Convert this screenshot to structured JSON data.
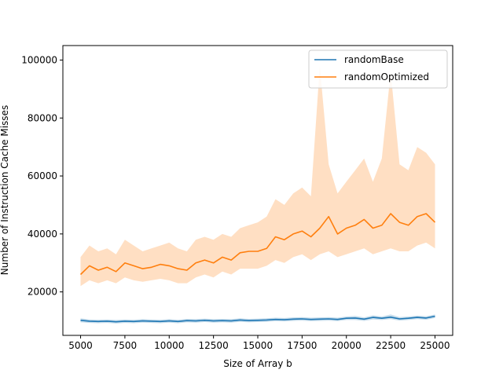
{
  "chart_data": {
    "type": "line",
    "xlabel": "Size of Array b",
    "ylabel": "Number of Instruction Cache Misses",
    "xlim": [
      4000,
      26000
    ],
    "ylim": [
      5000,
      105000
    ],
    "xticks": [
      5000,
      7500,
      10000,
      12500,
      15000,
      17500,
      20000,
      22500,
      25000
    ],
    "yticks": [
      20000,
      40000,
      60000,
      80000,
      100000
    ],
    "grid": false,
    "legend_position": "top-right",
    "x": [
      5000,
      5500,
      6000,
      6500,
      7000,
      7500,
      8000,
      8500,
      9000,
      9500,
      10000,
      10500,
      11000,
      11500,
      12000,
      12500,
      13000,
      13500,
      14000,
      14500,
      15000,
      15500,
      16000,
      16500,
      17000,
      17500,
      18000,
      18500,
      19000,
      19500,
      20000,
      20500,
      21000,
      21500,
      22000,
      22500,
      23000,
      23500,
      24000,
      24500,
      25000
    ],
    "series": [
      {
        "name": "randomBase",
        "color": "#1f77b4",
        "values": [
          10200,
          9900,
          9800,
          9900,
          9700,
          9900,
          9800,
          10000,
          9900,
          9800,
          10000,
          9800,
          10100,
          10000,
          10200,
          10000,
          10100,
          10000,
          10300,
          10100,
          10200,
          10300,
          10500,
          10400,
          10600,
          10700,
          10500,
          10600,
          10700,
          10500,
          10900,
          11000,
          10600,
          11200,
          10900,
          11300,
          10700,
          10900,
          11200,
          11000,
          11600
        ],
        "band_lower": [
          9500,
          9300,
          9200,
          9300,
          9100,
          9300,
          9200,
          9400,
          9300,
          9200,
          9400,
          9200,
          9500,
          9400,
          9600,
          9400,
          9500,
          9400,
          9700,
          9500,
          9600,
          9700,
          9900,
          9800,
          10000,
          10100,
          9900,
          10000,
          10100,
          9900,
          10300,
          10300,
          10000,
          10500,
          10300,
          10600,
          10100,
          10300,
          10600,
          10400,
          11000
        ],
        "band_upper": [
          10900,
          10500,
          10400,
          10500,
          10300,
          10500,
          10400,
          10600,
          10500,
          10400,
          10600,
          10400,
          10700,
          10600,
          10800,
          10600,
          10700,
          10600,
          10900,
          10700,
          10800,
          10900,
          11100,
          11000,
          11200,
          11300,
          11100,
          11200,
          11300,
          11100,
          11500,
          11700,
          11200,
          11900,
          11500,
          12200,
          11300,
          11500,
          11800,
          11600,
          12200
        ]
      },
      {
        "name": "randomOptimized",
        "color": "#ff7f0e",
        "values": [
          26000,
          29000,
          27500,
          28500,
          27000,
          30000,
          29000,
          28000,
          28500,
          29500,
          29000,
          28000,
          27500,
          30000,
          31000,
          30000,
          32000,
          31000,
          33500,
          34000,
          34000,
          35000,
          39000,
          38000,
          40000,
          41000,
          39000,
          42000,
          46000,
          40000,
          42000,
          43000,
          45000,
          42000,
          43000,
          47000,
          44000,
          43000,
          46000,
          47000,
          44000
        ],
        "band_lower": [
          22000,
          24000,
          23000,
          24000,
          23000,
          25000,
          24000,
          23500,
          24000,
          24500,
          24000,
          23000,
          23000,
          25000,
          26000,
          25000,
          27000,
          26000,
          28000,
          28000,
          28000,
          29000,
          31000,
          30000,
          32000,
          33000,
          31000,
          33000,
          34000,
          32000,
          33000,
          34000,
          35000,
          33000,
          34000,
          35000,
          34000,
          34000,
          36000,
          37000,
          35000
        ],
        "band_upper": [
          32000,
          36000,
          34000,
          35000,
          33000,
          38000,
          36000,
          34000,
          35000,
          36000,
          37000,
          35000,
          34000,
          38000,
          39000,
          38000,
          40000,
          39000,
          42000,
          43000,
          44000,
          46000,
          52000,
          50000,
          54000,
          56000,
          53000,
          98000,
          64000,
          54000,
          58000,
          62000,
          66000,
          58000,
          66000,
          96000,
          64000,
          62000,
          70000,
          68000,
          64000
        ]
      }
    ]
  }
}
